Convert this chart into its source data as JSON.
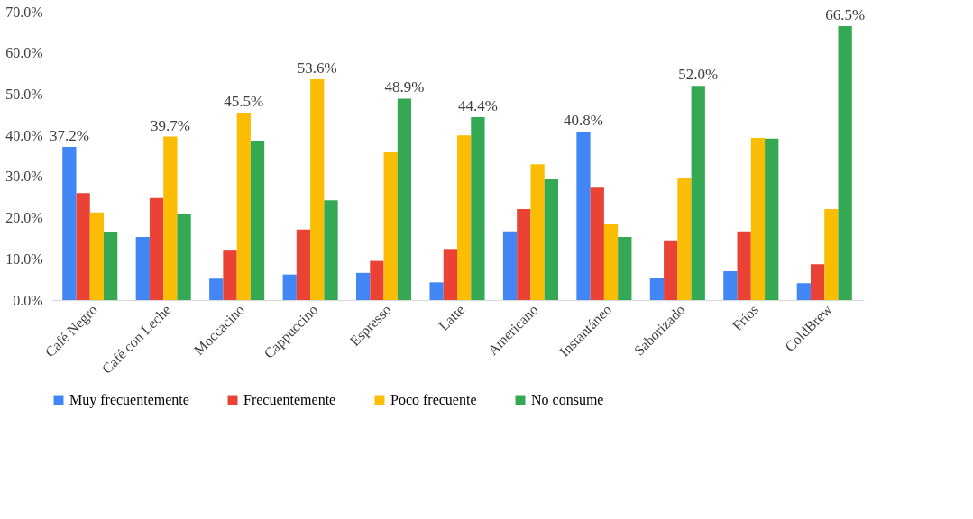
{
  "chart_data": {
    "type": "bar",
    "categories": [
      "Café Negro",
      "Café con Leche",
      "Moccacino",
      "Cappuccino",
      "Espresso",
      "Latte",
      "Americano",
      "Instantáneo",
      "Saborizado",
      "Fríos",
      "ColdBrew"
    ],
    "series": [
      {
        "name": "Muy frecuentemente",
        "color": "#4285f4",
        "values": [
          37.2,
          15.3,
          5.2,
          6.2,
          6.6,
          4.3,
          16.7,
          40.8,
          5.4,
          7.0,
          4.1
        ],
        "value_labels": [
          "37.2%",
          null,
          null,
          null,
          null,
          null,
          null,
          "40.8%",
          null,
          null,
          null
        ]
      },
      {
        "name": "Frecuentemente",
        "color": "#ea4335",
        "values": [
          26.0,
          24.8,
          12.0,
          17.1,
          9.5,
          12.4,
          22.1,
          27.3,
          14.5,
          16.7,
          8.7
        ],
        "value_labels": [
          null,
          null,
          null,
          null,
          null,
          null,
          null,
          null,
          null,
          null,
          null
        ]
      },
      {
        "name": "Poco frecuente",
        "color": "#fbbc04",
        "values": [
          21.3,
          39.7,
          45.5,
          53.6,
          35.9,
          40.0,
          33.0,
          18.4,
          29.7,
          39.4,
          22.1
        ],
        "value_labels": [
          null,
          "39.7%",
          "45.5%",
          "53.6%",
          null,
          null,
          null,
          null,
          null,
          null,
          null
        ]
      },
      {
        "name": "No consume",
        "color": "#34a853",
        "values": [
          16.5,
          20.9,
          38.6,
          24.2,
          48.9,
          44.4,
          29.3,
          15.3,
          52.0,
          39.2,
          66.5
        ],
        "value_labels": [
          null,
          null,
          null,
          null,
          "48.9%",
          "44.4%",
          null,
          null,
          "52.0%",
          null,
          "66.5%"
        ]
      }
    ],
    "ylim": [
      0,
      70
    ],
    "yticks": [
      {
        "value": 0,
        "label": "0.0%"
      },
      {
        "value": 10,
        "label": "10.0%"
      },
      {
        "value": 20,
        "label": "20.0%"
      },
      {
        "value": 30,
        "label": "30.0%"
      },
      {
        "value": 40,
        "label": "40.0%"
      },
      {
        "value": 50,
        "label": "50.0%"
      },
      {
        "value": 60,
        "label": "60.0%"
      },
      {
        "value": 70,
        "label": "70.0%"
      }
    ],
    "grid": false,
    "legend": "bottom"
  }
}
